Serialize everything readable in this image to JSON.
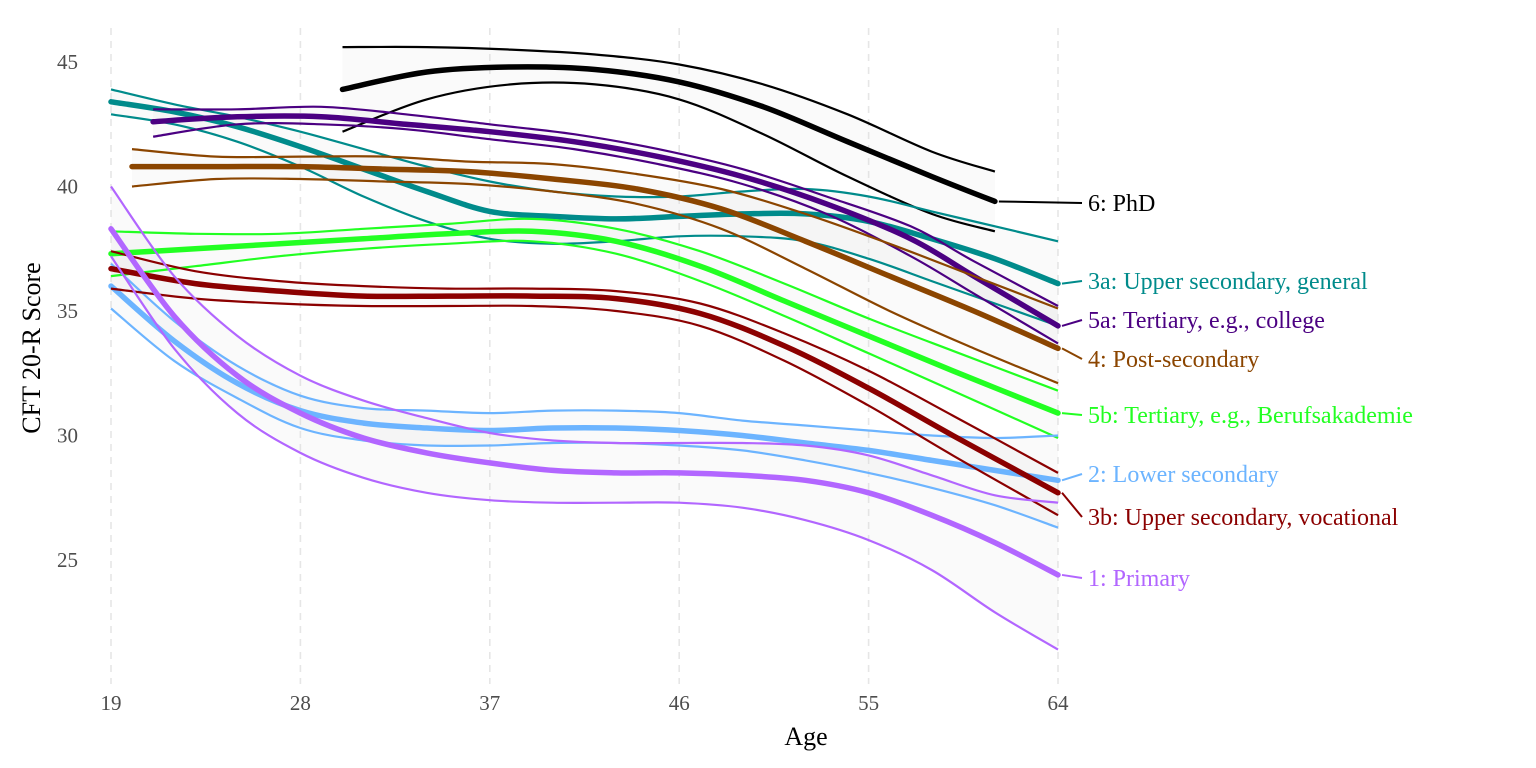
{
  "chart_data": {
    "type": "line",
    "xlabel": "Age",
    "ylabel": "CFT 20-R Score",
    "xlim": [
      19,
      65
    ],
    "ylim": [
      20,
      46.5
    ],
    "xticks": [
      19,
      28,
      37,
      46,
      55,
      64
    ],
    "yticks": [
      25,
      30,
      35,
      40,
      45
    ],
    "grid": "vertical dashed",
    "legend": "direct labels at right",
    "series": [
      {
        "name": "6: PhD",
        "color": "#000000",
        "x": [
          30,
          34,
          38,
          42,
          46,
          50,
          54,
          58,
          61
        ],
        "y": [
          43.9,
          44.6,
          44.8,
          44.7,
          44.2,
          43.2,
          41.8,
          40.4,
          39.4
        ],
        "lower": [
          42.2,
          43.5,
          44.1,
          44.1,
          43.5,
          42.1,
          40.4,
          38.9,
          38.2
        ],
        "upper": [
          45.6,
          45.6,
          45.5,
          45.3,
          44.9,
          44.1,
          42.9,
          41.4,
          40.6
        ]
      },
      {
        "name": "3a: Upper secondary, general",
        "color": "#008B8B",
        "x": [
          19,
          22,
          25,
          28,
          31,
          34,
          37,
          40,
          43,
          46,
          49,
          52,
          55,
          58,
          61,
          64
        ],
        "y": [
          43.4,
          43.0,
          42.4,
          41.6,
          40.7,
          39.8,
          39.0,
          38.8,
          38.7,
          38.8,
          38.9,
          38.9,
          38.6,
          37.9,
          37.1,
          36.1
        ],
        "lower": [
          42.9,
          42.5,
          41.8,
          40.8,
          39.6,
          38.6,
          37.9,
          37.7,
          37.8,
          38.0,
          38.0,
          37.8,
          37.1,
          36.2,
          35.3,
          34.4
        ],
        "upper": [
          43.9,
          43.3,
          42.8,
          42.2,
          41.5,
          40.8,
          40.2,
          39.8,
          39.6,
          39.6,
          39.8,
          39.9,
          39.6,
          39.0,
          38.4,
          37.8
        ]
      },
      {
        "name": "5a: Tertiary, e.g., college",
        "color": "#4B0082",
        "x": [
          21,
          25,
          29,
          33,
          37,
          41,
          45,
          49,
          53,
          57,
          60,
          64
        ],
        "y": [
          42.6,
          42.8,
          42.8,
          42.5,
          42.2,
          41.8,
          41.2,
          40.4,
          39.3,
          37.9,
          36.4,
          34.4
        ],
        "lower": [
          42.0,
          42.5,
          42.5,
          42.3,
          41.9,
          41.5,
          40.9,
          40.1,
          38.9,
          37.2,
          35.7,
          33.7
        ],
        "upper": [
          43.1,
          43.1,
          43.2,
          42.9,
          42.5,
          42.1,
          41.5,
          40.7,
          39.6,
          38.4,
          37.0,
          35.2
        ]
      },
      {
        "name": "4: Post-secondary",
        "color": "#8B4500",
        "x": [
          20,
          24,
          28,
          32,
          36,
          40,
          44,
          48,
          52,
          56,
          60,
          64
        ],
        "y": [
          40.8,
          40.8,
          40.8,
          40.7,
          40.6,
          40.3,
          39.9,
          39.1,
          37.8,
          36.4,
          35.0,
          33.5
        ],
        "lower": [
          40.0,
          40.3,
          40.3,
          40.2,
          40.1,
          39.8,
          39.3,
          38.3,
          36.7,
          35.0,
          33.5,
          32.1
        ],
        "upper": [
          41.5,
          41.2,
          41.2,
          41.2,
          41.0,
          40.9,
          40.5,
          39.9,
          38.9,
          37.7,
          36.4,
          35.1
        ]
      },
      {
        "name": "5b: Tertiary, e.g., Berufsakademie",
        "color": "#22FF22",
        "x": [
          19,
          23,
          27,
          31,
          35,
          39,
          43,
          47,
          51,
          55,
          59,
          64
        ],
        "y": [
          37.3,
          37.5,
          37.7,
          37.9,
          38.1,
          38.2,
          37.8,
          36.8,
          35.4,
          34.0,
          32.6,
          30.9
        ],
        "lower": [
          36.4,
          36.8,
          37.2,
          37.5,
          37.7,
          37.8,
          37.3,
          36.2,
          34.8,
          33.3,
          31.8,
          29.9
        ],
        "upper": [
          38.2,
          38.1,
          38.1,
          38.3,
          38.5,
          38.7,
          38.3,
          37.4,
          36.1,
          34.7,
          33.4,
          31.8
        ]
      },
      {
        "name": "2: Lower secondary",
        "color": "#6CB4FF",
        "x": [
          19,
          22,
          25,
          28,
          31,
          34,
          37,
          40,
          43,
          46,
          49,
          52,
          55,
          58,
          61,
          64
        ],
        "y": [
          36.0,
          33.8,
          32.1,
          31.0,
          30.5,
          30.3,
          30.2,
          30.3,
          30.3,
          30.2,
          30.0,
          29.7,
          29.4,
          29.0,
          28.6,
          28.2
        ],
        "lower": [
          35.1,
          33.0,
          31.5,
          30.3,
          29.8,
          29.6,
          29.6,
          29.7,
          29.7,
          29.6,
          29.4,
          29.0,
          28.5,
          27.9,
          27.2,
          26.3
        ],
        "upper": [
          36.9,
          34.6,
          32.8,
          31.6,
          31.1,
          31.0,
          30.9,
          31.0,
          31.0,
          30.9,
          30.6,
          30.4,
          30.2,
          30.0,
          29.9,
          30.0
        ]
      },
      {
        "name": "3b: Upper secondary, vocational",
        "color": "#8B0000",
        "x": [
          19,
          23,
          27,
          31,
          35,
          39,
          43,
          47,
          51,
          55,
          59,
          64
        ],
        "y": [
          36.7,
          36.1,
          35.8,
          35.6,
          35.6,
          35.6,
          35.5,
          34.9,
          33.6,
          31.9,
          30.0,
          27.7
        ],
        "lower": [
          35.9,
          35.5,
          35.3,
          35.2,
          35.2,
          35.2,
          35.0,
          34.4,
          33.0,
          31.2,
          29.2,
          26.8
        ],
        "upper": [
          37.4,
          36.6,
          36.2,
          36.0,
          35.9,
          35.9,
          35.8,
          35.3,
          34.1,
          32.6,
          30.8,
          28.5
        ]
      },
      {
        "name": "1: Primary",
        "color": "#B266FF",
        "x": [
          19,
          22,
          25,
          28,
          31,
          34,
          37,
          40,
          43,
          46,
          49,
          52,
          55,
          58,
          61,
          64
        ],
        "y": [
          38.3,
          34.8,
          32.4,
          30.9,
          29.9,
          29.3,
          28.9,
          28.6,
          28.5,
          28.5,
          28.4,
          28.2,
          27.7,
          26.8,
          25.7,
          24.4
        ],
        "lower": [
          37.2,
          33.5,
          30.9,
          29.3,
          28.3,
          27.7,
          27.4,
          27.3,
          27.3,
          27.3,
          27.1,
          26.6,
          25.8,
          24.6,
          22.9,
          21.4
        ],
        "upper": [
          40.0,
          36.4,
          34.0,
          32.4,
          31.4,
          30.7,
          30.1,
          29.8,
          29.7,
          29.7,
          29.7,
          29.6,
          29.2,
          28.4,
          27.6,
          27.3
        ]
      }
    ]
  },
  "labels": {
    "phd": "6: PhD",
    "upper_general": "3a: Upper secondary, general",
    "tertiary_college": "5a: Tertiary, e.g., college",
    "post_secondary": "4: Post-secondary",
    "tertiary_ba": "5b: Tertiary, e.g., Berufsakademie",
    "lower_secondary": "2: Lower secondary",
    "upper_vocational": "3b: Upper secondary, vocational",
    "primary": "1: Primary"
  }
}
